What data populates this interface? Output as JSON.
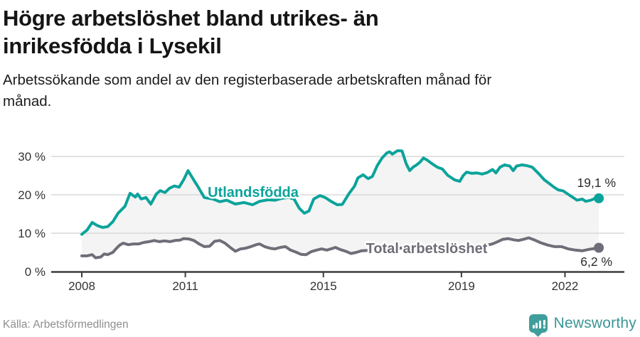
{
  "header": {
    "title": "Högre arbetslöshet bland utrikes- än inrikesfödda i Lysekil",
    "title_lines": [
      "Högre arbetslöshet bland utrikes- än",
      "inrikesfödda i Lysekil"
    ],
    "subtitle": "Arbetssökande som andel av den registerbaserade arbetskraften månad för månad.",
    "subtitle_lines": [
      "Arbetssökande som andel av den registerbaserade arbetskraften månad för",
      "månad."
    ]
  },
  "chart_data": {
    "type": "line",
    "title": "Högre arbetslöshet bland utrikes- än inrikesfödda i Lysekil",
    "xlabel": "",
    "ylabel": "",
    "unit": "%",
    "grid": true,
    "xlim": [
      2007.8,
      2023.2
    ],
    "ylim": [
      0,
      35
    ],
    "x_ticks": [
      {
        "year": 2008,
        "label": "2008"
      },
      {
        "year": 2011,
        "label": "2011"
      },
      {
        "year": 2015,
        "label": "2015"
      },
      {
        "year": 2019,
        "label": "2019"
      },
      {
        "year": 2022,
        "label": "2022"
      }
    ],
    "y_ticks": [
      {
        "value": 0,
        "label": "0 %"
      },
      {
        "value": 10,
        "label": "10 %"
      },
      {
        "value": 20,
        "label": "20 %"
      },
      {
        "value": 30,
        "label": "30 %"
      }
    ],
    "fill_between_color": "#f4f4f4",
    "series": [
      {
        "name": "Utlandsfödda",
        "color": "#0ba39b",
        "end_annotation": "19,1 %",
        "end_value": 19.1,
        "points": [
          [
            2008,
            9.7
          ],
          [
            2008.15,
            10.8
          ],
          [
            2008.3,
            12.8
          ],
          [
            2008.45,
            12
          ],
          [
            2008.6,
            11.5
          ],
          [
            2008.75,
            11.7
          ],
          [
            2008.9,
            13
          ],
          [
            2009.05,
            15.2
          ],
          [
            2009.25,
            17
          ],
          [
            2009.4,
            20.4
          ],
          [
            2009.55,
            19.4
          ],
          [
            2009.62,
            20.2
          ],
          [
            2009.72,
            18.9
          ],
          [
            2009.86,
            19.3
          ],
          [
            2010,
            17.6
          ],
          [
            2010.16,
            20.2
          ],
          [
            2010.27,
            21.1
          ],
          [
            2010.41,
            20.6
          ],
          [
            2010.54,
            21.7
          ],
          [
            2010.68,
            22.3
          ],
          [
            2010.82,
            22
          ],
          [
            2010.95,
            23.9
          ],
          [
            2011.08,
            26.3
          ],
          [
            2011.24,
            23.9
          ],
          [
            2011.36,
            22.2
          ],
          [
            2011.55,
            19.3
          ],
          [
            2011.8,
            18.9
          ],
          [
            2012,
            18.2
          ],
          [
            2012.2,
            18.6
          ],
          [
            2012.45,
            17.6
          ],
          [
            2012.7,
            18
          ],
          [
            2012.95,
            17.4
          ],
          [
            2013.15,
            18.3
          ],
          [
            2013.4,
            18.7
          ],
          [
            2013.6,
            18.6
          ],
          [
            2013.8,
            19.1
          ],
          [
            2014,
            19.3
          ],
          [
            2014.15,
            18.9
          ],
          [
            2014.3,
            16.5
          ],
          [
            2014.45,
            15.2
          ],
          [
            2014.58,
            15.8
          ],
          [
            2014.72,
            18.9
          ],
          [
            2014.9,
            19.8
          ],
          [
            2015.05,
            19.3
          ],
          [
            2015.2,
            18.4
          ],
          [
            2015.4,
            17.4
          ],
          [
            2015.55,
            17.5
          ],
          [
            2015.75,
            20.4
          ],
          [
            2015.9,
            22.2
          ],
          [
            2016,
            24.4
          ],
          [
            2016.15,
            25.2
          ],
          [
            2016.3,
            24.2
          ],
          [
            2016.42,
            24.8
          ],
          [
            2016.56,
            27.6
          ],
          [
            2016.7,
            29.6
          ],
          [
            2016.84,
            30.9
          ],
          [
            2016.92,
            31.2
          ],
          [
            2017,
            30.6
          ],
          [
            2017.15,
            31.5
          ],
          [
            2017.28,
            31.4
          ],
          [
            2017.4,
            28.1
          ],
          [
            2017.5,
            26.3
          ],
          [
            2017.6,
            27.2
          ],
          [
            2017.7,
            27.8
          ],
          [
            2017.8,
            28.5
          ],
          [
            2017.9,
            29.6
          ],
          [
            2018,
            29.1
          ],
          [
            2018.15,
            28.1
          ],
          [
            2018.3,
            27.2
          ],
          [
            2018.45,
            26.7
          ],
          [
            2018.6,
            25.1
          ],
          [
            2018.8,
            23.9
          ],
          [
            2018.95,
            23.5
          ],
          [
            2019.05,
            25
          ],
          [
            2019.15,
            25.9
          ],
          [
            2019.3,
            25.6
          ],
          [
            2019.45,
            25.7
          ],
          [
            2019.6,
            25.4
          ],
          [
            2019.75,
            25.8
          ],
          [
            2019.9,
            26.6
          ],
          [
            2020,
            25.7
          ],
          [
            2020.12,
            27.2
          ],
          [
            2020.25,
            27.8
          ],
          [
            2020.4,
            27.5
          ],
          [
            2020.5,
            26.3
          ],
          [
            2020.6,
            27.5
          ],
          [
            2020.75,
            27.8
          ],
          [
            2020.9,
            27.6
          ],
          [
            2021.05,
            27.2
          ],
          [
            2021.25,
            25.4
          ],
          [
            2021.4,
            23.9
          ],
          [
            2021.55,
            22.9
          ],
          [
            2021.65,
            22.2
          ],
          [
            2021.8,
            21.3
          ],
          [
            2021.95,
            21
          ],
          [
            2022.1,
            20.1
          ],
          [
            2022.2,
            19.5
          ],
          [
            2022.35,
            18.6
          ],
          [
            2022.5,
            18.9
          ],
          [
            2022.6,
            18.3
          ],
          [
            2022.75,
            18.6
          ],
          [
            2022.9,
            19.2
          ],
          [
            2022.98,
            19.1
          ]
        ]
      },
      {
        "name": "Total arbetslöshet",
        "color": "#6e6e78",
        "end_annotation": "6,2 %",
        "end_value": 6.2,
        "points": [
          [
            2008,
            4.1
          ],
          [
            2008.15,
            4.1
          ],
          [
            2008.3,
            4.4
          ],
          [
            2008.4,
            3.6
          ],
          [
            2008.55,
            3.8
          ],
          [
            2008.65,
            4.6
          ],
          [
            2008.75,
            4.4
          ],
          [
            2008.9,
            5
          ],
          [
            2009,
            6
          ],
          [
            2009.1,
            6.9
          ],
          [
            2009.2,
            7.4
          ],
          [
            2009.35,
            7
          ],
          [
            2009.5,
            7.2
          ],
          [
            2009.65,
            7.2
          ],
          [
            2009.8,
            7.6
          ],
          [
            2009.95,
            7.8
          ],
          [
            2010.1,
            8.1
          ],
          [
            2010.25,
            7.8
          ],
          [
            2010.4,
            8
          ],
          [
            2010.55,
            7.8
          ],
          [
            2010.7,
            8.1
          ],
          [
            2010.85,
            8.2
          ],
          [
            2010.95,
            8.6
          ],
          [
            2011.1,
            8.5
          ],
          [
            2011.25,
            8.1
          ],
          [
            2011.4,
            7.2
          ],
          [
            2011.55,
            6.5
          ],
          [
            2011.7,
            6.6
          ],
          [
            2011.85,
            7.9
          ],
          [
            2012,
            8.1
          ],
          [
            2012.15,
            7.4
          ],
          [
            2012.3,
            6.3
          ],
          [
            2012.45,
            5.3
          ],
          [
            2012.6,
            5.9
          ],
          [
            2012.75,
            6.1
          ],
          [
            2012.9,
            6.5
          ],
          [
            2013.05,
            7
          ],
          [
            2013.15,
            7.2
          ],
          [
            2013.3,
            6.5
          ],
          [
            2013.45,
            6.1
          ],
          [
            2013.6,
            5.9
          ],
          [
            2013.75,
            6.3
          ],
          [
            2013.9,
            6.5
          ],
          [
            2014.05,
            5.6
          ],
          [
            2014.2,
            5.1
          ],
          [
            2014.35,
            4.5
          ],
          [
            2014.5,
            4.4
          ],
          [
            2014.65,
            5.2
          ],
          [
            2014.8,
            5.6
          ],
          [
            2014.95,
            5.9
          ],
          [
            2015.1,
            5.6
          ],
          [
            2015.25,
            6
          ],
          [
            2015.35,
            6.3
          ],
          [
            2015.5,
            5.7
          ],
          [
            2015.65,
            5.3
          ],
          [
            2015.8,
            4.7
          ],
          [
            2015.95,
            5
          ],
          [
            2016.1,
            5.4
          ],
          [
            2016.3,
            5.5
          ],
          [
            2016.5,
            5.8
          ],
          [
            2016.7,
            6
          ],
          [
            2016.9,
            5.7
          ],
          [
            2017.1,
            5.9
          ],
          [
            2017.3,
            6.2
          ],
          [
            2017.5,
            5.8
          ],
          [
            2017.7,
            5.6
          ],
          [
            2017.9,
            5.9
          ],
          [
            2018.1,
            6
          ],
          [
            2018.3,
            5.7
          ],
          [
            2018.5,
            5.5
          ],
          [
            2018.7,
            5.8
          ],
          [
            2018.9,
            6.1
          ],
          [
            2019.1,
            6.4
          ],
          [
            2019.3,
            6.6
          ],
          [
            2019.5,
            6.5
          ],
          [
            2019.7,
            6.8
          ],
          [
            2019.9,
            7.2
          ],
          [
            2020.05,
            7.8
          ],
          [
            2020.2,
            8.4
          ],
          [
            2020.35,
            8.6
          ],
          [
            2020.5,
            8.3
          ],
          [
            2020.65,
            8.1
          ],
          [
            2020.8,
            8.4
          ],
          [
            2020.95,
            8.8
          ],
          [
            2021.1,
            8.3
          ],
          [
            2021.3,
            7.5
          ],
          [
            2021.5,
            6.9
          ],
          [
            2021.7,
            6.5
          ],
          [
            2021.9,
            6.5
          ],
          [
            2022.1,
            5.9
          ],
          [
            2022.3,
            5.6
          ],
          [
            2022.5,
            5.4
          ],
          [
            2022.7,
            5.8
          ],
          [
            2022.85,
            6
          ],
          [
            2022.98,
            6.2
          ]
        ]
      }
    ]
  },
  "footer": {
    "source": "Källa: Arbetsförmedlingen",
    "brand": "Newsworthy",
    "brand_color": "#3a9795",
    "brand_icon": "bar-chart-bubble-icon"
  }
}
